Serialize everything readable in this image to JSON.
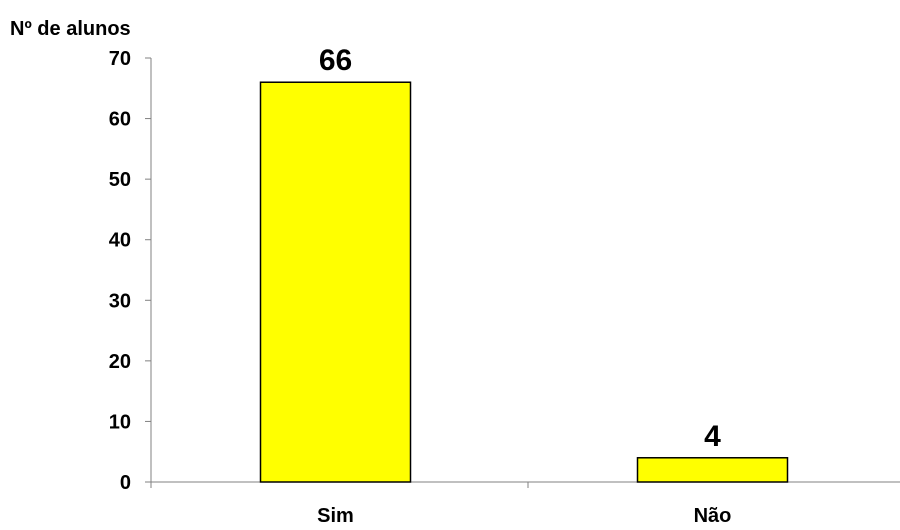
{
  "chart_data": {
    "type": "bar",
    "title": "",
    "xlabel": "",
    "ylabel": "Nº de alunos",
    "categories": [
      "Sim",
      "Não"
    ],
    "values": [
      66,
      4
    ],
    "data_labels": [
      "66",
      "4"
    ],
    "ylim": [
      0,
      70
    ],
    "yticks": [
      0,
      10,
      20,
      30,
      40,
      50,
      60,
      70
    ],
    "ytick_labels": [
      "0",
      "10",
      "20",
      "30",
      "40",
      "50",
      "60",
      "70"
    ],
    "grid": false,
    "legend": "none",
    "colors": {
      "bar_fill": "#FFFF00",
      "bar_stroke": "#000000",
      "axis": "#808080"
    }
  }
}
